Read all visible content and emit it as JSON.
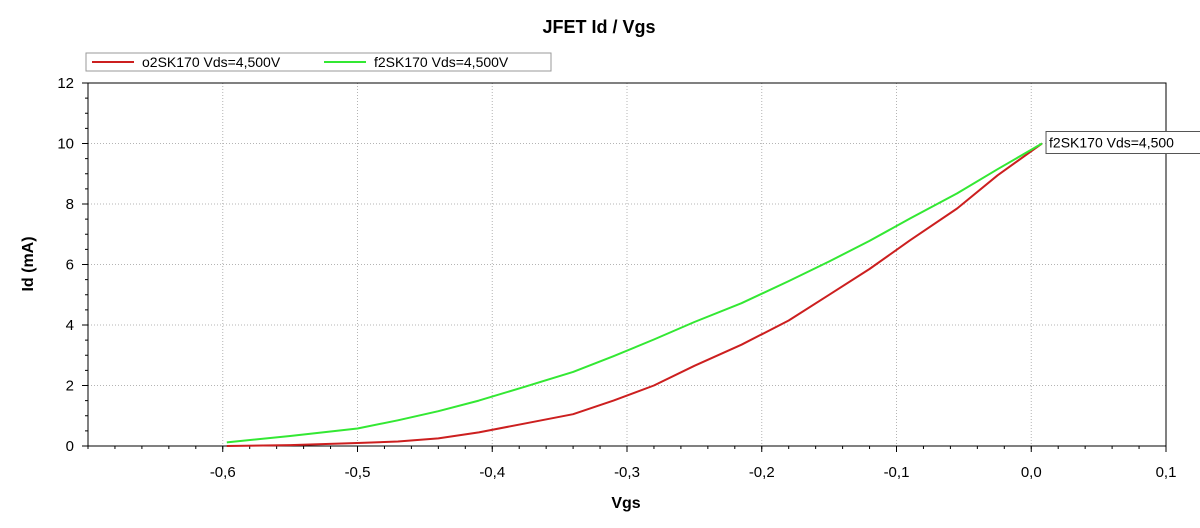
{
  "chart_data": {
    "type": "line",
    "title": "JFET Id / Vgs",
    "xlabel": "Vgs",
    "ylabel": "Id (mA)",
    "xlim": [
      -0.7,
      0.1
    ],
    "ylim": [
      0,
      12
    ],
    "xticks": [
      {
        "value": -0.6,
        "label": "-0,6"
      },
      {
        "value": -0.5,
        "label": "-0,5"
      },
      {
        "value": -0.4,
        "label": "-0,4"
      },
      {
        "value": -0.3,
        "label": "-0,3"
      },
      {
        "value": -0.2,
        "label": "-0,2"
      },
      {
        "value": -0.1,
        "label": "-0,1"
      },
      {
        "value": 0.0,
        "label": "0,0"
      },
      {
        "value": 0.1,
        "label": "0,1"
      }
    ],
    "yticks": [
      {
        "value": 0,
        "label": "0"
      },
      {
        "value": 2,
        "label": "2"
      },
      {
        "value": 4,
        "label": "4"
      },
      {
        "value": 6,
        "label": "6"
      },
      {
        "value": 8,
        "label": "8"
      },
      {
        "value": 10,
        "label": "10"
      },
      {
        "value": 12,
        "label": "12"
      }
    ],
    "grid": true,
    "legend_position": "top-left",
    "series": [
      {
        "name": "o2SK170 Vds=4,500V",
        "color": "#cc1f1f",
        "points": [
          [
            -0.597,
            0.0
          ],
          [
            -0.55,
            0.03
          ],
          [
            -0.5,
            0.1
          ],
          [
            -0.47,
            0.15
          ],
          [
            -0.44,
            0.25
          ],
          [
            -0.41,
            0.45
          ],
          [
            -0.375,
            0.75
          ],
          [
            -0.34,
            1.05
          ],
          [
            -0.31,
            1.5
          ],
          [
            -0.28,
            2.0
          ],
          [
            -0.25,
            2.65
          ],
          [
            -0.215,
            3.35
          ],
          [
            -0.18,
            4.15
          ],
          [
            -0.15,
            5.0
          ],
          [
            -0.12,
            5.85
          ],
          [
            -0.09,
            6.8
          ],
          [
            -0.055,
            7.85
          ],
          [
            -0.025,
            8.95
          ],
          [
            0.008,
            10.0
          ]
        ]
      },
      {
        "name": "f2SK170 Vds=4,500V",
        "color": "#33e833",
        "points": [
          [
            -0.597,
            0.12
          ],
          [
            -0.55,
            0.33
          ],
          [
            -0.5,
            0.58
          ],
          [
            -0.47,
            0.85
          ],
          [
            -0.44,
            1.15
          ],
          [
            -0.41,
            1.5
          ],
          [
            -0.375,
            1.97
          ],
          [
            -0.34,
            2.45
          ],
          [
            -0.31,
            2.97
          ],
          [
            -0.28,
            3.52
          ],
          [
            -0.25,
            4.1
          ],
          [
            -0.215,
            4.72
          ],
          [
            -0.18,
            5.45
          ],
          [
            -0.15,
            6.1
          ],
          [
            -0.12,
            6.78
          ],
          [
            -0.09,
            7.52
          ],
          [
            -0.055,
            8.35
          ],
          [
            -0.025,
            9.15
          ],
          [
            0.008,
            10.0
          ]
        ]
      }
    ],
    "annotation": {
      "text": "f2SK170 Vds=4,500",
      "x": 0.008,
      "y": 10.0
    }
  }
}
